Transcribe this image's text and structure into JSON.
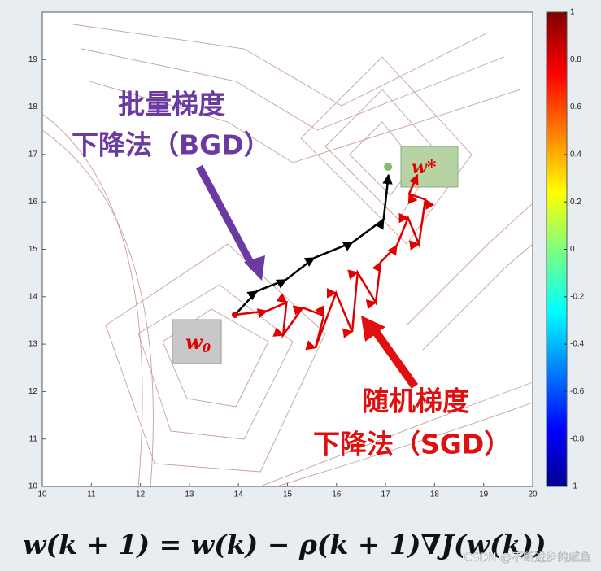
{
  "chart_data": {
    "type": "contour-path",
    "xlim": [
      10,
      20
    ],
    "ylim": [
      10,
      20
    ],
    "xticks": [
      10,
      11,
      12,
      13,
      14,
      15,
      16,
      17,
      18,
      19,
      20
    ],
    "yticks": [
      10,
      11,
      12,
      13,
      14,
      15,
      16,
      17,
      18,
      19
    ],
    "clim": [
      -1,
      1
    ],
    "cticks": [
      1,
      0.8,
      0.6,
      0.4,
      0.2,
      0,
      -0.2,
      -0.4,
      -0.6,
      -0.8,
      -1
    ],
    "series": [
      {
        "color": "#000000",
        "x": [
          13.93,
          14.38,
          14.97,
          15.55,
          16.33,
          16.96,
          17.06
        ],
        "y": [
          13.62,
          14.12,
          14.36,
          14.82,
          15.15,
          15.63,
          16.57
        ]
      },
      {
        "color": "#e00000",
        "x": [
          13.93,
          14.58,
          14.98,
          14.91,
          15.31,
          15.74,
          15.57,
          15.99,
          16.32,
          16.43,
          16.8,
          16.9,
          17.23,
          17.46,
          17.68,
          17.81,
          17.48,
          17.65
        ],
        "y": [
          13.62,
          13.7,
          13.88,
          13.19,
          13.77,
          13.6,
          12.92,
          14.08,
          13.26,
          14.51,
          13.88,
          14.73,
          15.08,
          15.66,
          15.11,
          16.05,
          16.17,
          16.57
        ]
      }
    ],
    "optimum": {
      "x": 17.05,
      "y": 16.74
    },
    "annotations": {
      "bgd_line1": "批量梯度",
      "bgd_line2": "下降法（BGD）",
      "sgd_line1": "随机梯度",
      "sgd_line2": "下降法（SGD）",
      "w0_base": "w",
      "w0_sub": "0",
      "wstar": "w*"
    },
    "formula": "w(k + 1) = w(k) − ρ(k + 1)∇J(w(k))",
    "watermark": "CSDN @不断进步的咸鱼"
  }
}
